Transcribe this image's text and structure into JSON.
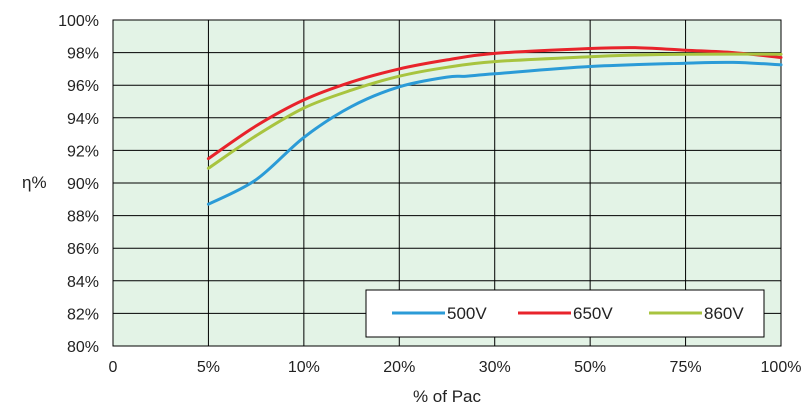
{
  "chart_data": {
    "type": "line",
    "title": "",
    "xlabel": "% of Pac",
    "ylabel": "η%",
    "categories": [
      "0",
      "5%",
      "10%",
      "20%",
      "30%",
      "50%",
      "75%",
      "100%"
    ],
    "y_ticks": [
      "80%",
      "82%",
      "84%",
      "86%",
      "88%",
      "90%",
      "92%",
      "94%",
      "96%",
      "98%",
      "100%"
    ],
    "ylim": [
      80,
      100
    ],
    "grid": true,
    "legend_position": "bottom-right",
    "series": [
      {
        "name": "500V",
        "color": "#2b9bd7",
        "points": [
          [
            1,
            88.7
          ],
          [
            1.5,
            90.2
          ],
          [
            2,
            92.8
          ],
          [
            2.5,
            94.7
          ],
          [
            3,
            95.9
          ],
          [
            3.5,
            96.5
          ],
          [
            3.7,
            96.55
          ],
          [
            4,
            96.7
          ],
          [
            5,
            97.15
          ],
          [
            6,
            97.35
          ],
          [
            6.5,
            97.4
          ],
          [
            7,
            97.25
          ]
        ]
      },
      {
        "name": "650V",
        "color": "#e8232b",
        "points": [
          [
            1,
            91.5
          ],
          [
            1.5,
            93.5
          ],
          [
            2,
            95.1
          ],
          [
            2.5,
            96.2
          ],
          [
            3,
            97.0
          ],
          [
            3.5,
            97.55
          ],
          [
            4,
            97.95
          ],
          [
            5,
            98.25
          ],
          [
            5.5,
            98.3
          ],
          [
            6,
            98.15
          ],
          [
            6.5,
            98.0
          ],
          [
            7,
            97.7
          ]
        ]
      },
      {
        "name": "860V",
        "color": "#a8c43f",
        "points": [
          [
            1,
            90.9
          ],
          [
            1.5,
            92.9
          ],
          [
            2,
            94.6
          ],
          [
            2.5,
            95.7
          ],
          [
            3,
            96.55
          ],
          [
            3.5,
            97.1
          ],
          [
            4,
            97.45
          ],
          [
            5,
            97.75
          ],
          [
            5.5,
            97.85
          ],
          [
            6,
            97.9
          ],
          [
            7,
            97.9
          ]
        ]
      }
    ]
  }
}
